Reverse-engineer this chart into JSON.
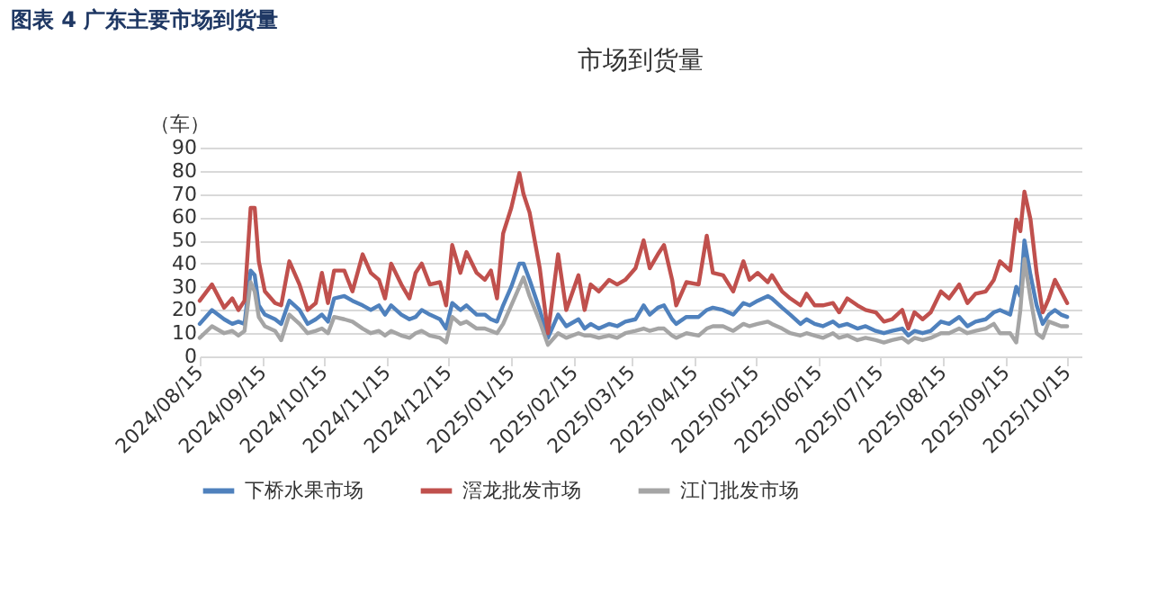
{
  "chart_data": {
    "type": "line",
    "title": "市场到货量",
    "ylabel": "（车）",
    "annotations": [
      "图表 4 广东主要市场到货量"
    ],
    "x": [
      "2024-08-15",
      "2024-08-21",
      "2024-08-27",
      "2024-08-31",
      "2024-09-03",
      "2024-09-06",
      "2024-09-09",
      "2024-09-11",
      "2024-09-13",
      "2024-09-16",
      "2024-09-21",
      "2024-09-24",
      "2024-09-28",
      "2024-10-03",
      "2024-10-07",
      "2024-10-11",
      "2024-10-14",
      "2024-10-17",
      "2024-10-20",
      "2024-10-25",
      "2024-10-29",
      "2024-11-03",
      "2024-11-07",
      "2024-11-11",
      "2024-11-14",
      "2024-11-17",
      "2024-11-22",
      "2024-11-26",
      "2024-11-29",
      "2024-12-02",
      "2024-12-06",
      "2024-12-11",
      "2024-12-14",
      "2024-12-17",
      "2024-12-21",
      "2024-12-24",
      "2024-12-29",
      "2025-01-02",
      "2025-01-05",
      "2025-01-08",
      "2025-01-11",
      "2025-01-15",
      "2025-01-19",
      "2025-01-21",
      "2025-01-24",
      "2025-01-29",
      "2025-02-02",
      "2025-02-07",
      "2025-02-11",
      "2025-02-17",
      "2025-02-20",
      "2025-02-23",
      "2025-02-27",
      "2025-03-04",
      "2025-03-08",
      "2025-03-12",
      "2025-03-17",
      "2025-03-21",
      "2025-03-24",
      "2025-03-28",
      "2025-03-31",
      "2025-04-04",
      "2025-04-06",
      "2025-04-11",
      "2025-04-17",
      "2025-04-21",
      "2025-04-24",
      "2025-04-29",
      "2025-05-04",
      "2025-05-09",
      "2025-05-12",
      "2025-05-16",
      "2025-05-21",
      "2025-05-23",
      "2025-05-28",
      "2025-06-01",
      "2025-06-06",
      "2025-06-09",
      "2025-06-13",
      "2025-06-17",
      "2025-06-22",
      "2025-06-25",
      "2025-06-29",
      "2025-07-04",
      "2025-07-08",
      "2025-07-13",
      "2025-07-17",
      "2025-07-21",
      "2025-07-26",
      "2025-07-29",
      "2025-08-01",
      "2025-08-05",
      "2025-08-09",
      "2025-08-14",
      "2025-08-18",
      "2025-08-23",
      "2025-08-27",
      "2025-08-31",
      "2025-09-05",
      "2025-09-09",
      "2025-09-12",
      "2025-09-17",
      "2025-09-20",
      "2025-09-22",
      "2025-09-24",
      "2025-09-27",
      "2025-09-30",
      "2025-10-03",
      "2025-10-06",
      "2025-10-09",
      "2025-10-12",
      "2025-10-15"
    ],
    "series": [
      {
        "name": "下桥水果市场",
        "color": "#4f81bd",
        "values": [
          14,
          20,
          16,
          14,
          15,
          14,
          37,
          35,
          22,
          18,
          16,
          14,
          24,
          20,
          14,
          16,
          18,
          15,
          25,
          26,
          24,
          22,
          20,
          22,
          18,
          22,
          18,
          16,
          17,
          20,
          18,
          16,
          12,
          23,
          20,
          22,
          18,
          18,
          16,
          15,
          22,
          30,
          40,
          40,
          33,
          20,
          8,
          18,
          13,
          16,
          12,
          14,
          12,
          14,
          13,
          15,
          16,
          22,
          18,
          21,
          22,
          16,
          14,
          17,
          17,
          20,
          21,
          20,
          18,
          23,
          22,
          24,
          26,
          25,
          21,
          18,
          14,
          16,
          14,
          13,
          15,
          13,
          14,
          12,
          13,
          11,
          10,
          11,
          12,
          9,
          11,
          10,
          11,
          15,
          14,
          17,
          13,
          15,
          16,
          19,
          20,
          18,
          30,
          26,
          50,
          35,
          22,
          14,
          18,
          20,
          18,
          17
        ]
      },
      {
        "name": "滘龙批发市场",
        "color": "#c0504d",
        "values": [
          24,
          31,
          21,
          25,
          20,
          24,
          64,
          64,
          41,
          28,
          23,
          22,
          41,
          31,
          20,
          23,
          36,
          23,
          37,
          37,
          28,
          44,
          36,
          33,
          25,
          40,
          31,
          25,
          36,
          40,
          31,
          32,
          22,
          48,
          36,
          45,
          36,
          33,
          37,
          25,
          53,
          64,
          79,
          70,
          62,
          38,
          10,
          44,
          20,
          35,
          20,
          31,
          28,
          33,
          31,
          33,
          38,
          50,
          38,
          44,
          48,
          33,
          22,
          32,
          31,
          52,
          36,
          35,
          28,
          41,
          33,
          36,
          32,
          35,
          28,
          25,
          22,
          27,
          22,
          22,
          23,
          19,
          25,
          22,
          20,
          19,
          15,
          16,
          20,
          12,
          19,
          16,
          19,
          28,
          25,
          31,
          23,
          27,
          28,
          33,
          41,
          37,
          59,
          54,
          71,
          59,
          36,
          19,
          25,
          33,
          28,
          23
        ]
      },
      {
        "name": "江门批发市场",
        "color": "#a5a5a5",
        "values": [
          8,
          13,
          10,
          11,
          9,
          11,
          32,
          28,
          17,
          13,
          11,
          7,
          18,
          14,
          10,
          11,
          12,
          10,
          17,
          16,
          15,
          12,
          10,
          11,
          9,
          11,
          9,
          8,
          10,
          11,
          9,
          8,
          6,
          17,
          14,
          15,
          12,
          12,
          11,
          10,
          14,
          22,
          30,
          34,
          26,
          15,
          5,
          10,
          8,
          10,
          9,
          9,
          8,
          9,
          8,
          10,
          11,
          12,
          11,
          12,
          12,
          9,
          8,
          10,
          9,
          12,
          13,
          13,
          11,
          14,
          13,
          14,
          15,
          14,
          12,
          10,
          9,
          10,
          9,
          8,
          10,
          8,
          9,
          7,
          8,
          7,
          6,
          7,
          8,
          6,
          8,
          7,
          8,
          10,
          10,
          12,
          10,
          11,
          12,
          14,
          10,
          10,
          6,
          20,
          42,
          25,
          10,
          8,
          15,
          14,
          13,
          13
        ]
      }
    ],
    "xlim": [
      "2024-08-15",
      "2025-10-22"
    ],
    "xticks": [
      {
        "value": "2024-08-15",
        "label": "2024/08/15"
      },
      {
        "value": "2024-09-15",
        "label": "2024/09/15"
      },
      {
        "value": "2024-10-15",
        "label": "2024/10/15"
      },
      {
        "value": "2024-11-15",
        "label": "2024/11/15"
      },
      {
        "value": "2024-12-15",
        "label": "2024/12/15"
      },
      {
        "value": "2025-01-15",
        "label": "2025/01/15"
      },
      {
        "value": "2025-02-15",
        "label": "2025/02/15"
      },
      {
        "value": "2025-03-15",
        "label": "2025/03/15"
      },
      {
        "value": "2025-04-15",
        "label": "2025/04/15"
      },
      {
        "value": "2025-05-15",
        "label": "2025/05/15"
      },
      {
        "value": "2025-06-15",
        "label": "2025/06/15"
      },
      {
        "value": "2025-07-15",
        "label": "2025/07/15"
      },
      {
        "value": "2025-08-15",
        "label": "2025/08/15"
      },
      {
        "value": "2025-09-15",
        "label": "2025/09/15"
      },
      {
        "value": "2025-10-15",
        "label": "2025/10/15"
      }
    ],
    "ylim": [
      0,
      90
    ],
    "yticks": [
      0,
      10,
      20,
      30,
      40,
      50,
      60,
      70,
      80,
      90
    ],
    "grid": "y",
    "legend": "bottom",
    "marker": "none",
    "line_style": "solid"
  }
}
